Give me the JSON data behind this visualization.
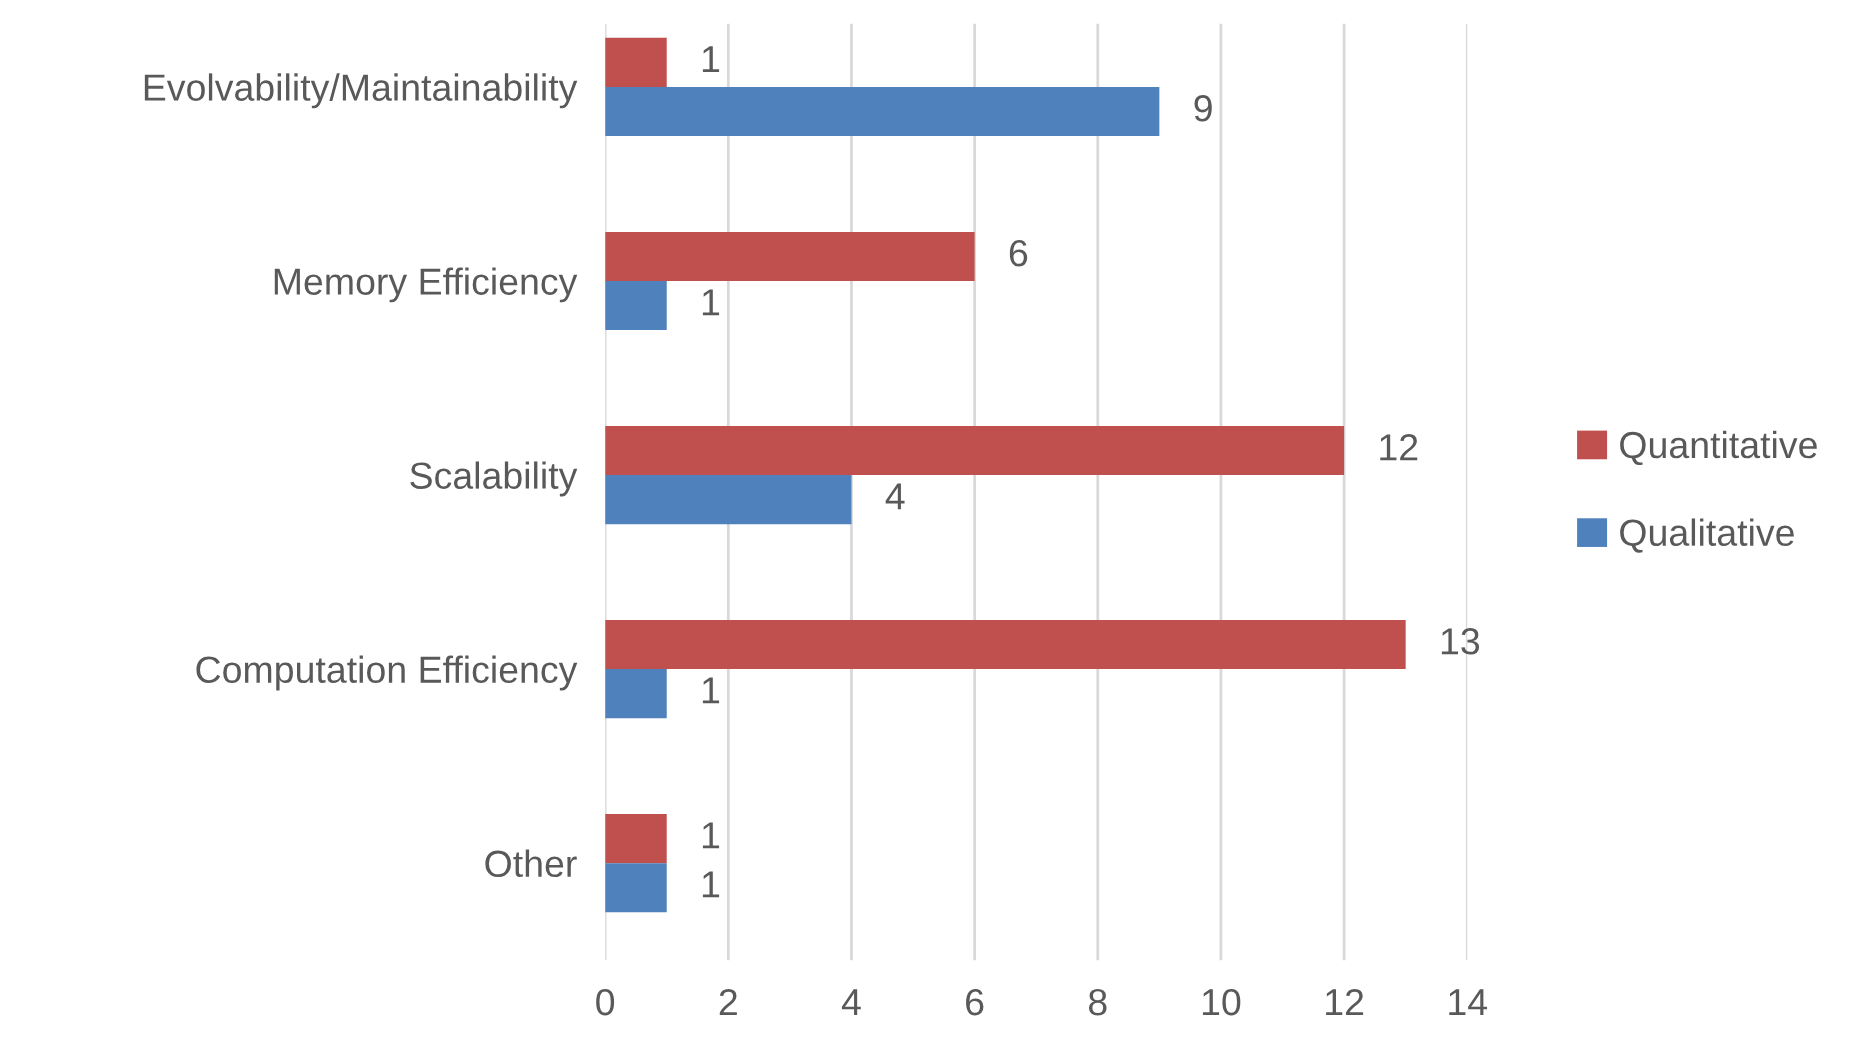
{
  "chart_data": {
    "type": "bar",
    "orientation": "horizontal",
    "categories": [
      "Evolvability/Maintainability",
      "Memory Efficiency",
      "Scalability",
      "Computation Efficiency",
      "Other"
    ],
    "series": [
      {
        "name": "Quantitative",
        "color": "#c0504d",
        "values": [
          1,
          6,
          12,
          13,
          1
        ]
      },
      {
        "name": "Qualitative",
        "color": "#4f81bd",
        "values": [
          9,
          1,
          4,
          1,
          1
        ]
      }
    ],
    "xlim": [
      0,
      14
    ],
    "xticks": [
      0,
      2,
      4,
      6,
      8,
      10,
      12,
      14
    ],
    "grid": "x",
    "legend": "right",
    "data_labels": true
  }
}
